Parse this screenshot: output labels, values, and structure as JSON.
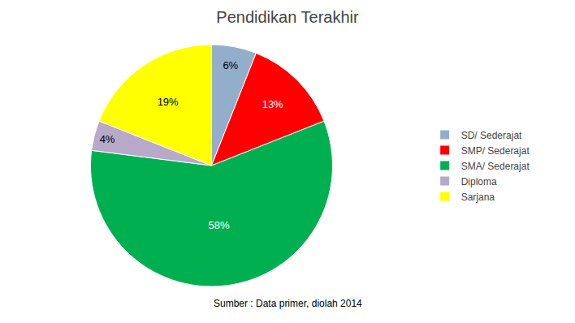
{
  "chart_data": {
    "type": "pie",
    "title": "Pendidikan Terakhir",
    "categories": [
      "SD/ Sederajat",
      "SMP/ Sederajat",
      "SMA/ Sederajat",
      "Diploma",
      "Sarjana"
    ],
    "values": [
      6,
      13,
      58,
      4,
      19
    ],
    "value_labels": [
      "6%",
      "13%",
      "58%",
      "4%",
      "19%"
    ],
    "colors": [
      "#92AECA",
      "#FF0000",
      "#00B050",
      "#B8A9C9",
      "#FFFF00"
    ],
    "data_labels": true,
    "legend": "right",
    "annotations": [
      "Sumber : Data primer, diolah 2014"
    ]
  }
}
